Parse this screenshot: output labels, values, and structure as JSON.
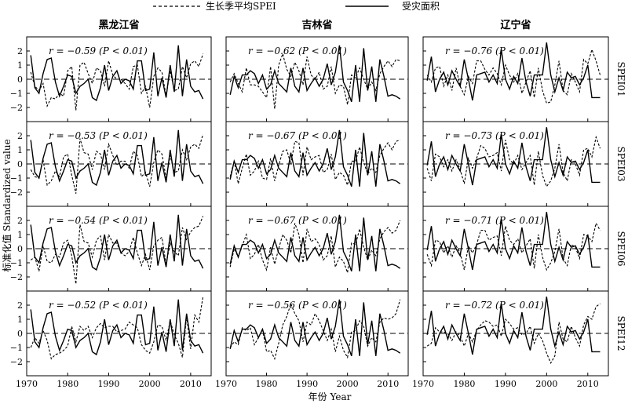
{
  "legend": {
    "dashed_label": "生长季平均SPEI",
    "solid_label": "受灾面积"
  },
  "axes": {
    "ylabel": "标准化值 Standardized value",
    "xlabel": "年份 Year"
  },
  "chart_data": {
    "type": "line",
    "columns": [
      "黑龙江省",
      "吉林省",
      "辽宁省"
    ],
    "rows": [
      "SPEI01",
      "SPEI03",
      "SPEI06",
      "SPEI12"
    ],
    "x": [
      1971,
      1972,
      1973,
      1974,
      1975,
      1976,
      1977,
      1978,
      1979,
      1980,
      1981,
      1982,
      1983,
      1984,
      1985,
      1986,
      1987,
      1988,
      1989,
      1990,
      1991,
      1992,
      1993,
      1994,
      1995,
      1996,
      1997,
      1998,
      1999,
      2000,
      2001,
      2002,
      2003,
      2004,
      2005,
      2006,
      2007,
      2008,
      2009,
      2010,
      2011,
      2012,
      2013
    ],
    "xlim": [
      1970,
      2015
    ],
    "ylim": [
      -3,
      3
    ],
    "xticks": [
      1970,
      1980,
      1990,
      2000,
      2010
    ],
    "yticks": [
      -2,
      -1,
      0,
      1,
      2
    ],
    "zero_line": "dashed",
    "series": [
      {
        "name": "受灾面积",
        "style": "solid"
      },
      {
        "name": "生长季平均SPEI",
        "style": "dashed"
      }
    ],
    "disaster_area": {
      "黑龙江省": [
        1.7,
        -0.6,
        -1.0,
        0.4,
        1.4,
        1.5,
        -0.2,
        -1.2,
        -0.5,
        0.3,
        0.2,
        -1.0,
        -0.5,
        -0.3,
        0.0,
        -1.3,
        -1.5,
        -0.6,
        1.0,
        -0.8,
        0.2,
        0.6,
        -0.3,
        0.0,
        -0.1,
        -0.7,
        1.3,
        1.3,
        -0.8,
        -0.7,
        1.9,
        -1.2,
        0.1,
        -1.3,
        1.0,
        -0.9,
        2.4,
        -1.2,
        1.4,
        -0.5,
        -0.9,
        -0.8,
        -1.4
      ],
      "吉林省": [
        -1.1,
        0.2,
        -0.6,
        0.3,
        0.3,
        0.6,
        0.4,
        -0.3,
        0.3,
        -0.7,
        -0.4,
        0.6,
        -0.3,
        -0.6,
        -0.9,
        0.8,
        -0.5,
        -0.9,
        0.8,
        -0.8,
        -0.3,
        0.1,
        -0.5,
        0.0,
        1.1,
        -0.4,
        0.5,
        2.4,
        -0.2,
        -0.8,
        -1.6,
        1.0,
        -1.6,
        2.2,
        -0.8,
        0.9,
        -1.6,
        1.4,
        0.2,
        -1.2,
        -1.1,
        -1.2,
        -1.4
      ],
      "辽宁省": [
        -0.1,
        1.6,
        -0.9,
        0.0,
        0.5,
        -0.4,
        0.6,
        0.0,
        -0.5,
        1.4,
        0.0,
        -1.5,
        0.3,
        0.4,
        0.5,
        -0.2,
        0.3,
        -0.3,
        2.1,
        0.0,
        -0.7,
        0.2,
        -0.3,
        1.5,
        -0.2,
        -1.2,
        0.3,
        0.3,
        0.3,
        2.6,
        0.3,
        -0.9,
        0.1,
        -0.8,
        0.5,
        0.1,
        0.2,
        -0.4,
        0.1,
        1.0,
        -1.3,
        -1.3,
        -1.3
      ]
    },
    "spei": {
      "黑龙江省": {
        "SPEI01": [
          0.5,
          -0.5,
          -0.8,
          -0.3,
          -1.9,
          -1.3,
          -1.4,
          -1.0,
          -1.2,
          0.6,
          0.9,
          -2.2,
          1.0,
          1.2,
          0.4,
          -0.3,
          0.8,
          0.6,
          -0.5,
          1.3,
          0.3,
          0.0,
          0.0,
          -0.3,
          -0.7,
          0.9,
          1.0,
          -1.0,
          -0.5,
          -2.0,
          0.2,
          0.8,
          0.5,
          -1.2,
          0.6,
          -0.8,
          -0.7,
          0.9,
          0.1,
          1.1,
          1.3,
          0.9,
          1.8
        ],
        "SPEI03": [
          -0.4,
          -0.9,
          -1.0,
          0.3,
          -1.5,
          -1.2,
          -0.5,
          -0.9,
          0.5,
          0.7,
          -0.8,
          -2.1,
          1.8,
          0.8,
          0.7,
          -0.4,
          0.9,
          0.7,
          -0.4,
          1.4,
          0.6,
          -0.1,
          0.2,
          0.2,
          -0.3,
          0.9,
          0.6,
          -0.9,
          -0.6,
          -1.6,
          0.1,
          1.0,
          0.7,
          -1.0,
          0.6,
          -0.6,
          -0.5,
          1.0,
          0.3,
          1.2,
          1.4,
          1.1,
          2.1
        ],
        "SPEI06": [
          -0.8,
          -0.6,
          -1.6,
          0.2,
          -0.9,
          -1.0,
          -0.4,
          -0.6,
          0.4,
          0.6,
          -0.5,
          -2.5,
          1.7,
          0.5,
          0.4,
          -0.6,
          0.6,
          0.9,
          -0.8,
          1.0,
          0.4,
          0.4,
          -0.3,
          -0.5,
          -0.2,
          0.8,
          -0.3,
          -1.2,
          -0.4,
          -1.5,
          0.2,
          0.6,
          0.8,
          -1.1,
          0.4,
          -0.2,
          -0.5,
          1.5,
          0.6,
          1.2,
          1.5,
          1.6,
          2.3
        ],
        "SPEI12": [
          -1.0,
          -0.3,
          -0.7,
          0.2,
          -0.5,
          -1.8,
          -1.5,
          -1.4,
          -1.2,
          -0.9,
          0.5,
          -0.6,
          0.5,
          0.2,
          0.5,
          -0.3,
          0.4,
          0.7,
          0.4,
          0.5,
          0.5,
          0.1,
          0.2,
          0.3,
          0.8,
          0.6,
          0.4,
          -0.8,
          -1.2,
          -1.4,
          -0.6,
          0.6,
          0.5,
          -0.5,
          0.9,
          -0.1,
          -0.7,
          -1.7,
          1.2,
          -1.1,
          1.3,
          0.8,
          2.6
        ]
      },
      "吉林省": {
        "SPEI01": [
          -0.2,
          0.4,
          -0.3,
          -0.9,
          0.8,
          -0.4,
          -0.4,
          -0.5,
          -0.9,
          -1.3,
          0.9,
          -2.1,
          1.0,
          1.8,
          0.7,
          0.2,
          1.2,
          0.6,
          -0.4,
          1.6,
          0.3,
          0.0,
          0.5,
          -0.7,
          -0.5,
          0.9,
          -1.0,
          -0.4,
          -0.5,
          -1.8,
          0.3,
          0.1,
          0.8,
          0.0,
          -0.7,
          -0.2,
          -0.8,
          0.4,
          0.9,
          1.3,
          0.9,
          1.4,
          1.3
        ],
        "SPEI03": [
          -0.9,
          0.2,
          -1.4,
          -0.3,
          0.7,
          -0.8,
          -0.5,
          0.2,
          -1.0,
          -1.1,
          0.4,
          -1.2,
          -0.1,
          0.9,
          1.0,
          0.0,
          1.6,
          1.5,
          -0.8,
          1.2,
          0.3,
          0.5,
          0.6,
          -0.6,
          -0.4,
          0.7,
          -1.1,
          -0.6,
          -0.8,
          -1.5,
          0.2,
          0.2,
          1.2,
          0.1,
          -0.7,
          -0.3,
          -0.6,
          0.6,
          1.1,
          1.5,
          1.0,
          1.6,
          1.7
        ],
        "SPEI06": [
          -1.3,
          0.0,
          -0.6,
          0.2,
          1.0,
          -0.7,
          -0.4,
          0.3,
          -0.8,
          -1.5,
          0.1,
          -1.1,
          0.0,
          1.0,
          0.6,
          -0.3,
          1.8,
          1.0,
          -1.0,
          1.4,
          0.5,
          0.7,
          0.3,
          -0.8,
          -0.5,
          0.9,
          -1.3,
          -0.6,
          -0.9,
          -1.7,
          0.4,
          0.3,
          1.4,
          0.1,
          -0.8,
          -0.1,
          -0.5,
          0.7,
          1.2,
          1.5,
          1.1,
          1.3,
          2.0
        ],
        "SPEI12": [
          -1.0,
          -0.6,
          -0.8,
          0.4,
          0.2,
          0.4,
          -0.8,
          -0.3,
          0.3,
          -1.3,
          -1.2,
          -1.8,
          -0.7,
          0.6,
          1.2,
          2.1,
          1.4,
          0.9,
          -0.6,
          0.8,
          0.6,
          1.4,
          0.9,
          0.2,
          -0.5,
          0.3,
          -1.3,
          -0.2,
          -1.2,
          -1.7,
          0.1,
          0.2,
          0.9,
          0.5,
          -0.9,
          -0.3,
          -0.6,
          0.8,
          1.1,
          1.0,
          1.1,
          1.4,
          2.4
        ]
      },
      "辽宁省": {
        "SPEI01": [
          0.3,
          -0.2,
          0.8,
          0.9,
          -0.5,
          0.3,
          -0.8,
          0.8,
          -0.5,
          -1.1,
          0.2,
          -0.3,
          1.3,
          1.3,
          0.7,
          0.3,
          0.8,
          0.4,
          -0.4,
          1.0,
          0.3,
          -0.2,
          0.4,
          -1.0,
          -0.2,
          0.6,
          -1.3,
          0.8,
          -0.8,
          -1.7,
          -1.6,
          -0.4,
          1.3,
          -0.8,
          -1.1,
          0.4,
          -0.2,
          -0.9,
          1.4,
          1.1,
          2.1,
          1.3,
          0.3
        ],
        "SPEI03": [
          -0.3,
          -1.2,
          0.7,
          0.5,
          -0.2,
          0.3,
          -0.5,
          0.3,
          -0.4,
          -1.4,
          0.4,
          -0.3,
          0.4,
          1.3,
          1.1,
          0.5,
          0.6,
          0.8,
          -0.5,
          1.7,
          0.3,
          0.0,
          0.6,
          -0.4,
          0.1,
          0.6,
          -1.5,
          0.9,
          -0.8,
          -1.6,
          -1.2,
          -0.3,
          1.4,
          -0.6,
          -1.2,
          0.3,
          0.0,
          -0.8,
          1.0,
          1.1,
          0.5,
          1.9,
          1.1
        ],
        "SPEI06": [
          -0.4,
          -1.2,
          0.6,
          0.5,
          -0.3,
          0.2,
          -0.6,
          0.2,
          -0.3,
          -1.5,
          0.2,
          -0.3,
          0.3,
          1.3,
          1.3,
          0.6,
          0.8,
          0.9,
          -0.5,
          1.6,
          0.6,
          0.3,
          0.7,
          -0.3,
          0.2,
          0.7,
          -1.4,
          1.0,
          -0.6,
          -1.5,
          -1.0,
          -0.2,
          1.4,
          -0.7,
          -1.2,
          0.3,
          0.1,
          -0.7,
          1.0,
          0.9,
          0.5,
          1.8,
          1.3
        ],
        "SPEI12": [
          -0.9,
          -0.7,
          0.4,
          0.1,
          0.1,
          0.0,
          -0.5,
          0.1,
          -0.2,
          -0.9,
          0.0,
          -0.6,
          0.2,
          0.6,
          0.9,
          0.8,
          0.5,
          0.6,
          -0.2,
          1.0,
          0.7,
          0.3,
          0.4,
          -0.1,
          0.0,
          0.5,
          -0.7,
          0.0,
          -0.5,
          -1.4,
          -2.1,
          -1.6,
          0.8,
          -0.4,
          -0.6,
          0.5,
          -0.3,
          -0.9,
          0.6,
          1.2,
          1.0,
          1.9,
          2.1
        ]
      }
    },
    "annotations": {
      "黑龙江省": [
        "r = −0.59 (P < 0.01)",
        "r = −0.53 (P < 0.01)",
        "r = −0.54 (P < 0.01)",
        "r = −0.52 (P < 0.01)"
      ],
      "吉林省": [
        "r = −0.62 (P < 0.01)",
        "r = −0.67 (P < 0.01)",
        "r = −0.67 (P < 0.01)",
        "r = −0.56 (P < 0.01)"
      ],
      "辽宁省": [
        "r = −0.76 (P < 0.01)",
        "r = −0.73 (P < 0.01)",
        "r = −0.71 (P < 0.01)",
        "r = −0.72 (P < 0.01)"
      ]
    }
  }
}
